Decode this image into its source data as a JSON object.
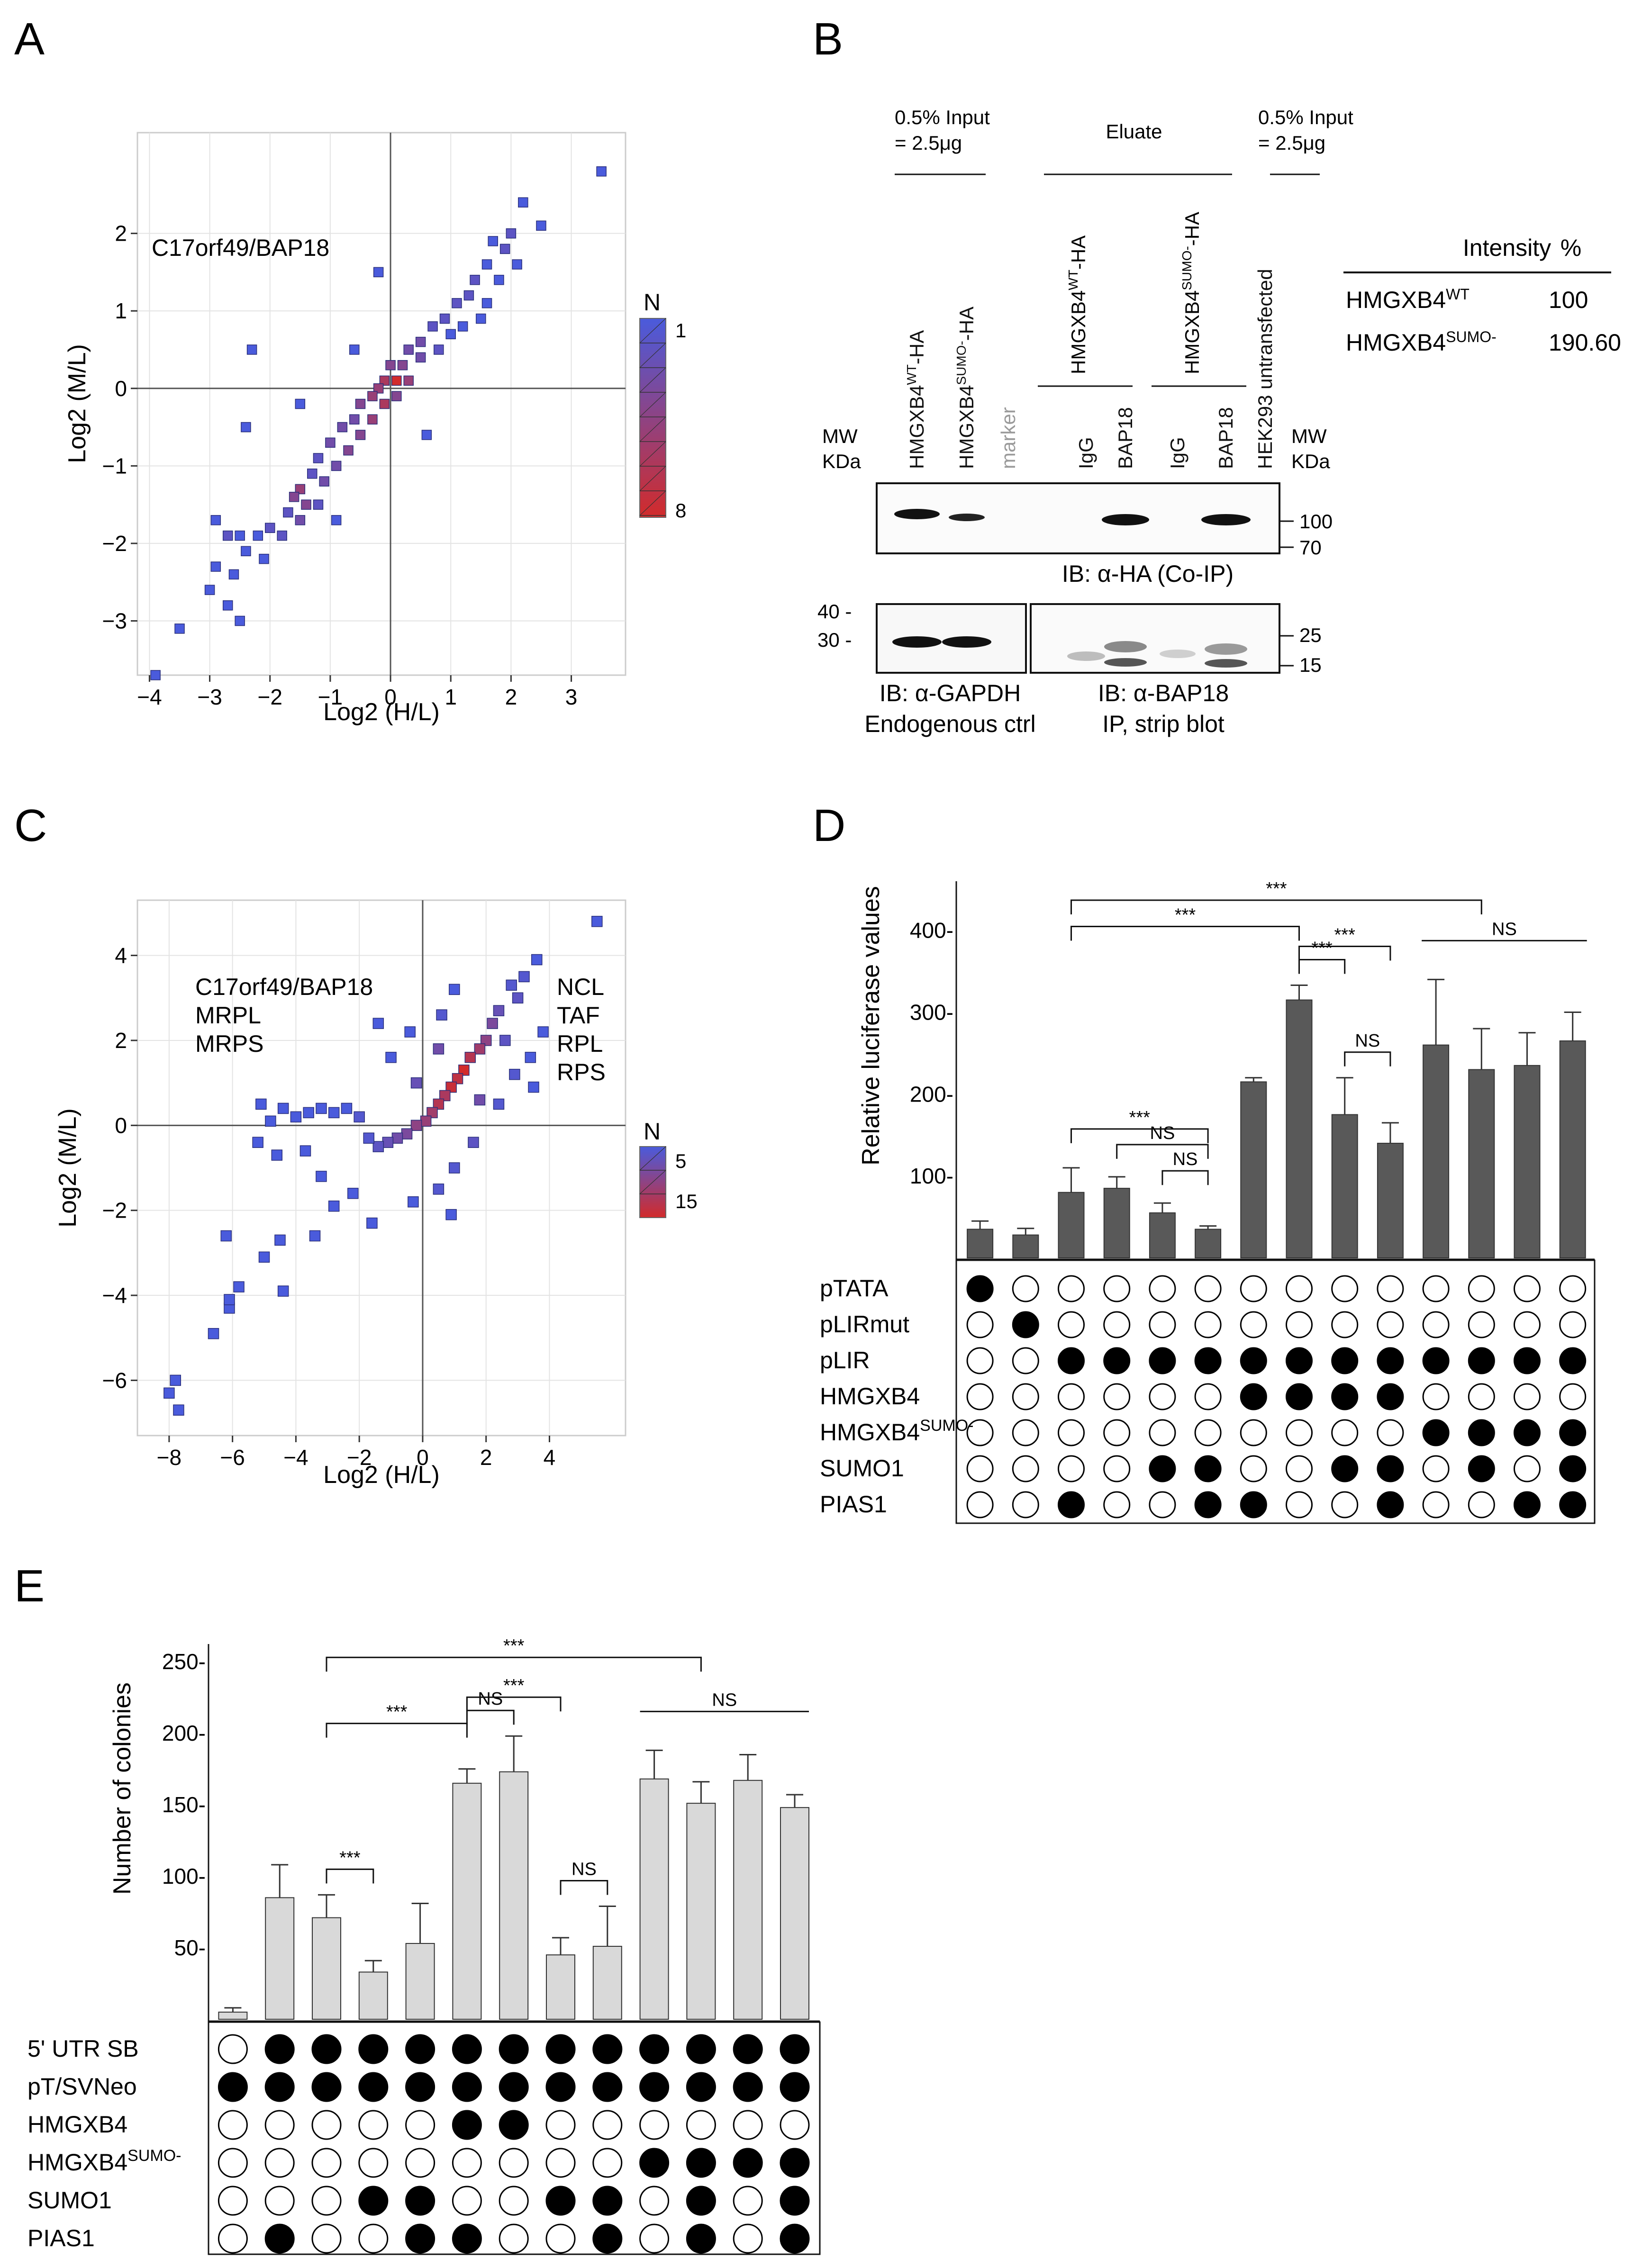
{
  "panels": {
    "A": "A",
    "B": "B",
    "C": "C",
    "D": "D",
    "E": "E"
  },
  "chart_data": [
    {
      "panel": "A",
      "type": "heatmap",
      "title": "",
      "xlabel": "Log2 (H/L)",
      "ylabel": "Log2 (M/L)",
      "xlim": [
        -4.2,
        3.9
      ],
      "ylim": [
        -3.7,
        3.3
      ],
      "xticks": [
        -4,
        -3,
        -2,
        -1,
        0,
        1,
        2,
        3
      ],
      "xtick_labels": [
        "−4",
        "−3",
        "−2",
        "−1",
        "0",
        "1",
        "2",
        "3"
      ],
      "yticks": [
        -3,
        -2,
        -1,
        0,
        1,
        2
      ],
      "ytick_labels": [
        "−3",
        "−2",
        "−1",
        "0",
        "1",
        "2"
      ],
      "annotation": "C17orf49/BAP18",
      "legend": {
        "title": "N",
        "min_label": "1",
        "max_label": "8",
        "min": 1,
        "max": 8
      },
      "bins": [
        [
          3.5,
          2.8,
          1
        ],
        [
          2.5,
          2.1,
          1
        ],
        [
          2.2,
          2.4,
          1
        ],
        [
          2.0,
          2.0,
          2
        ],
        [
          1.9,
          1.8,
          2
        ],
        [
          1.7,
          1.9,
          1
        ],
        [
          2.1,
          1.6,
          1
        ],
        [
          1.6,
          1.6,
          1
        ],
        [
          1.4,
          1.4,
          2
        ],
        [
          1.8,
          1.4,
          1
        ],
        [
          1.3,
          1.2,
          2
        ],
        [
          1.6,
          1.1,
          1
        ],
        [
          1.1,
          1.1,
          2
        ],
        [
          1.5,
          0.9,
          1
        ],
        [
          0.9,
          0.9,
          2
        ],
        [
          1.2,
          0.8,
          1
        ],
        [
          0.7,
          0.8,
          2
        ],
        [
          1.0,
          0.7,
          1
        ],
        [
          0.5,
          0.6,
          3
        ],
        [
          0.8,
          0.5,
          2
        ],
        [
          0.3,
          0.5,
          3
        ],
        [
          0.5,
          0.4,
          3
        ],
        [
          0.2,
          0.3,
          4
        ],
        [
          0.0,
          0.3,
          4
        ],
        [
          0.3,
          0.1,
          5
        ],
        [
          0.1,
          0.1,
          8
        ],
        [
          -0.1,
          0.1,
          6
        ],
        [
          -0.2,
          0.0,
          5
        ],
        [
          0.1,
          -0.1,
          4
        ],
        [
          -0.3,
          -0.1,
          5
        ],
        [
          -0.1,
          -0.2,
          6
        ],
        [
          -0.5,
          -0.2,
          4
        ],
        [
          -0.3,
          -0.4,
          5
        ],
        [
          -0.6,
          -0.4,
          3
        ],
        [
          -0.8,
          -0.5,
          3
        ],
        [
          -0.5,
          -0.6,
          4
        ],
        [
          -1.0,
          -0.7,
          3
        ],
        [
          -0.7,
          -0.8,
          4
        ],
        [
          -1.2,
          -0.9,
          2
        ],
        [
          -0.9,
          -1.0,
          3
        ],
        [
          -1.3,
          -1.1,
          2
        ],
        [
          -1.1,
          -1.2,
          3
        ],
        [
          -1.5,
          -1.3,
          5
        ],
        [
          -1.4,
          -1.5,
          4
        ],
        [
          -1.6,
          -1.4,
          4
        ],
        [
          -1.2,
          -1.5,
          2
        ],
        [
          -1.7,
          -1.6,
          2
        ],
        [
          -1.5,
          -1.7,
          3
        ],
        [
          -2.0,
          -1.8,
          2
        ],
        [
          -1.8,
          -1.9,
          2
        ],
        [
          -2.2,
          -1.9,
          1
        ],
        [
          -2.5,
          -1.9,
          1
        ],
        [
          -2.7,
          -1.9,
          2
        ],
        [
          -2.4,
          -2.1,
          1
        ],
        [
          -2.1,
          -2.2,
          1
        ],
        [
          -2.9,
          -1.7,
          1
        ],
        [
          -2.9,
          -2.3,
          1
        ],
        [
          -2.6,
          -2.4,
          1
        ],
        [
          -3.0,
          -2.6,
          1
        ],
        [
          -2.7,
          -2.8,
          1
        ],
        [
          -2.5,
          -3.0,
          1
        ],
        [
          -3.5,
          -3.1,
          1
        ],
        [
          -2.4,
          -0.5,
          1
        ],
        [
          -1.5,
          -0.2,
          1
        ],
        [
          -0.2,
          1.5,
          1
        ],
        [
          -2.3,
          0.5,
          1
        ],
        [
          -0.9,
          -1.7,
          1
        ],
        [
          -3.9,
          -3.7,
          1
        ],
        [
          0.6,
          -0.6,
          1
        ],
        [
          -0.6,
          0.5,
          1
        ]
      ]
    },
    {
      "panel": "C",
      "type": "heatmap",
      "title": "",
      "xlabel": "Log2 (H/L)",
      "ylabel": "Log2 (M/L)",
      "xlim": [
        -9.0,
        6.4
      ],
      "ylim": [
        -7.3,
        5.3
      ],
      "xticks": [
        -8,
        -6,
        -4,
        -2,
        0,
        2,
        4
      ],
      "xtick_labels": [
        "−8",
        "−6",
        "−4",
        "−2",
        "0",
        "2",
        "4"
      ],
      "yticks": [
        -6,
        -4,
        -2,
        0,
        2,
        4
      ],
      "ytick_labels": [
        "−6",
        "−4",
        "−2",
        "0",
        "2",
        "4"
      ],
      "annotation_left": [
        "C17orf49/BAP18",
        "MRPL",
        "MRPS"
      ],
      "annotation_right": [
        "NCL",
        "TAF",
        "RPL",
        "RPS"
      ],
      "legend": {
        "title": "N",
        "min_label": "5",
        "max_label": "15",
        "min": 1,
        "max": 15
      },
      "bins": [
        [
          5.5,
          4.8,
          1
        ],
        [
          3.6,
          3.9,
          1
        ],
        [
          3.2,
          3.5,
          2
        ],
        [
          3.0,
          3.0,
          3
        ],
        [
          2.8,
          3.3,
          2
        ],
        [
          2.4,
          2.7,
          4
        ],
        [
          2.2,
          2.4,
          6
        ],
        [
          2.0,
          2.0,
          8
        ],
        [
          1.8,
          1.8,
          10
        ],
        [
          1.5,
          1.6,
          12
        ],
        [
          1.3,
          1.3,
          15
        ],
        [
          1.1,
          1.1,
          13
        ],
        [
          0.9,
          0.9,
          14
        ],
        [
          0.7,
          0.7,
          11
        ],
        [
          0.5,
          0.5,
          12
        ],
        [
          0.3,
          0.3,
          10
        ],
        [
          0.1,
          0.1,
          9
        ],
        [
          -0.2,
          0.0,
          8
        ],
        [
          -0.5,
          -0.2,
          6
        ],
        [
          -0.8,
          -0.3,
          5
        ],
        [
          -1.1,
          -0.4,
          4
        ],
        [
          -1.4,
          -0.5,
          3
        ],
        [
          -1.7,
          -0.3,
          2
        ],
        [
          -2.0,
          0.2,
          2
        ],
        [
          -2.4,
          0.4,
          1
        ],
        [
          -2.8,
          0.3,
          1
        ],
        [
          -3.2,
          0.4,
          1
        ],
        [
          -3.6,
          0.3,
          1
        ],
        [
          -4.0,
          0.2,
          1
        ],
        [
          -4.4,
          0.4,
          1
        ],
        [
          -4.8,
          0.1,
          1
        ],
        [
          -5.2,
          -0.4,
          1
        ],
        [
          -5.1,
          0.5,
          1
        ],
        [
          -4.6,
          -0.7,
          1
        ],
        [
          -3.7,
          -0.6,
          1
        ],
        [
          -3.2,
          -1.2,
          1
        ],
        [
          -2.2,
          -1.6,
          1
        ],
        [
          -1.6,
          -2.3,
          1
        ],
        [
          -2.8,
          -1.9,
          1
        ],
        [
          -0.3,
          -1.8,
          1
        ],
        [
          0.5,
          -1.5,
          2
        ],
        [
          1.0,
          -1.0,
          2
        ],
        [
          1.6,
          -0.4,
          3
        ],
        [
          2.4,
          0.5,
          2
        ],
        [
          2.9,
          1.2,
          2
        ],
        [
          3.4,
          1.6,
          1
        ],
        [
          3.8,
          2.2,
          1
        ],
        [
          1.0,
          3.2,
          1
        ],
        [
          0.6,
          2.6,
          2
        ],
        [
          -0.4,
          2.2,
          1
        ],
        [
          -1.0,
          1.6,
          1
        ],
        [
          -0.2,
          1.0,
          4
        ],
        [
          0.5,
          1.8,
          5
        ],
        [
          1.8,
          0.6,
          5
        ],
        [
          2.6,
          2.0,
          3
        ],
        [
          -6.2,
          -2.6,
          1
        ],
        [
          -6.1,
          -4.3,
          1
        ],
        [
          -5.8,
          -3.8,
          1
        ],
        [
          -5.0,
          -3.1,
          1
        ],
        [
          -4.4,
          -3.9,
          1
        ],
        [
          -6.6,
          -4.9,
          1
        ],
        [
          -7.8,
          -6.0,
          1
        ],
        [
          -7.7,
          -6.7,
          1
        ],
        [
          -8.0,
          -6.3,
          1
        ],
        [
          -6.1,
          -4.1,
          1
        ],
        [
          -4.5,
          -2.7,
          1
        ],
        [
          -3.4,
          -2.6,
          1
        ],
        [
          -1.4,
          2.4,
          1
        ],
        [
          0.9,
          -2.1,
          1
        ],
        [
          3.5,
          0.9,
          1
        ]
      ]
    },
    {
      "panel": "D",
      "type": "bar",
      "title": "",
      "xlabel": "",
      "ylabel": "Relative luciferase values",
      "ylim": [
        0,
        460
      ],
      "yticks": [
        100,
        200,
        300,
        400
      ],
      "ytick_labels": [
        "100-",
        "200-",
        "300-",
        "400-"
      ],
      "values": [
        35,
        28,
        80,
        85,
        55,
        35,
        215,
        315,
        175,
        140,
        260,
        230,
        235,
        265
      ],
      "errors": [
        10,
        8,
        30,
        14,
        12,
        4,
        5,
        18,
        45,
        25,
        80,
        50,
        40,
        35
      ],
      "bar_color": "#595959",
      "significance": [
        {
          "from": 4,
          "to": 6,
          "label": "NS"
        },
        {
          "from": 5,
          "to": 6,
          "label": "NS"
        },
        {
          "from": 3,
          "to": 6,
          "label": "***"
        },
        {
          "from": 3,
          "to": 8,
          "label": "***"
        },
        {
          "from": 8,
          "to": 9,
          "label": "***"
        },
        {
          "from": 8,
          "to": 10,
          "label": "***"
        },
        {
          "from": 9,
          "to": 10,
          "label": "NS"
        },
        {
          "from": 3,
          "to": 12,
          "label": "***"
        },
        {
          "from": 11,
          "to": 14,
          "label": "NS"
        }
      ],
      "matrix_rows": [
        "pTATA",
        "pLIRmut",
        "pLIR",
        "HMGXB4",
        "HMGXB4",
        "SUMO1",
        "PIAS1"
      ],
      "matrix_row_sup": [
        "",
        "",
        "",
        "",
        "SUMO-",
        "",
        ""
      ],
      "matrix": [
        [
          1,
          0,
          0,
          0,
          0,
          0,
          0,
          0,
          0,
          0,
          0,
          0,
          0,
          0
        ],
        [
          0,
          1,
          0,
          0,
          0,
          0,
          0,
          0,
          0,
          0,
          0,
          0,
          0,
          0
        ],
        [
          0,
          0,
          1,
          1,
          1,
          1,
          1,
          1,
          1,
          1,
          1,
          1,
          1,
          1
        ],
        [
          0,
          0,
          0,
          0,
          0,
          0,
          1,
          1,
          1,
          1,
          0,
          0,
          0,
          0
        ],
        [
          0,
          0,
          0,
          0,
          0,
          0,
          0,
          0,
          0,
          0,
          1,
          1,
          1,
          1
        ],
        [
          0,
          0,
          0,
          0,
          1,
          1,
          0,
          0,
          1,
          1,
          0,
          1,
          0,
          1
        ],
        [
          0,
          0,
          1,
          0,
          0,
          1,
          1,
          0,
          0,
          1,
          0,
          0,
          1,
          1
        ]
      ]
    },
    {
      "panel": "E",
      "type": "bar",
      "title": "",
      "xlabel": "",
      "ylabel": "Number of colonies",
      "ylim": [
        0,
        260
      ],
      "yticks": [
        50,
        100,
        150,
        200,
        250
      ],
      "ytick_labels": [
        "50-",
        "100-",
        "150-",
        "200-",
        "250-"
      ],
      "values": [
        5,
        85,
        71,
        33,
        53,
        165,
        173,
        45,
        51,
        168,
        151,
        167,
        148
      ],
      "errors": [
        3,
        23,
        16,
        8,
        28,
        10,
        25,
        12,
        28,
        20,
        15,
        18,
        9
      ],
      "bar_color": "#d9d9d9",
      "significance": [
        {
          "from": 3,
          "to": 4,
          "label": "***"
        },
        {
          "from": 3,
          "to": 6,
          "label": "***"
        },
        {
          "from": 6,
          "to": 7,
          "label": "NS"
        },
        {
          "from": 6,
          "to": 8,
          "label": "***"
        },
        {
          "from": 8,
          "to": 9,
          "label": "NS"
        },
        {
          "from": 3,
          "to": 11,
          "label": "***"
        },
        {
          "from": 10,
          "to": 13,
          "label": "NS"
        }
      ],
      "matrix_rows": [
        "5' UTR SB",
        "pT/SVNeo",
        "HMGXB4",
        "HMGXB4",
        "SUMO1",
        "PIAS1"
      ],
      "matrix_row_sup": [
        "",
        "",
        "",
        "SUMO-",
        "",
        ""
      ],
      "matrix": [
        [
          0,
          1,
          1,
          1,
          1,
          1,
          1,
          1,
          1,
          1,
          1,
          1,
          1
        ],
        [
          1,
          1,
          1,
          1,
          1,
          1,
          1,
          1,
          1,
          1,
          1,
          1,
          1
        ],
        [
          0,
          0,
          0,
          0,
          0,
          1,
          1,
          0,
          0,
          0,
          0,
          0,
          0
        ],
        [
          0,
          0,
          0,
          0,
          0,
          0,
          0,
          0,
          0,
          1,
          1,
          1,
          1
        ],
        [
          0,
          0,
          0,
          1,
          1,
          0,
          0,
          1,
          1,
          0,
          1,
          0,
          1
        ],
        [
          0,
          1,
          0,
          0,
          1,
          1,
          0,
          0,
          1,
          0,
          1,
          0,
          1
        ]
      ]
    }
  ],
  "panelB": {
    "input_left": [
      "0.5% Input",
      "= 2.5μg"
    ],
    "eluate": "Eluate",
    "input_right": [
      "0.5% Input",
      "= 2.5μg"
    ],
    "lanes": [
      {
        "main": "HMGXB4",
        "sup": "WT",
        "suffix": "-HA"
      },
      {
        "main": "HMGXB4",
        "sup": "SUMO-",
        "suffix": "-HA"
      },
      {
        "main": "marker",
        "sup": "",
        "suffix": ""
      },
      {
        "main": "IgG",
        "sup": "",
        "suffix": ""
      },
      {
        "main": "BAP18",
        "sup": "",
        "suffix": ""
      },
      {
        "main": "IgG",
        "sup": "",
        "suffix": ""
      },
      {
        "main": "BAP18",
        "sup": "",
        "suffix": ""
      },
      {
        "main": "HEK293 untransfected",
        "sup": "",
        "suffix": ""
      }
    ],
    "eluate_groups": [
      {
        "main": "HMGXB4",
        "sup": "WT",
        "suffix": "-HA"
      },
      {
        "main": "HMGXB4",
        "sup": "SUMO-",
        "suffix": "-HA"
      }
    ],
    "mw_left": [
      "MW",
      "KDa"
    ],
    "mw_right": [
      "MW",
      "KDa"
    ],
    "mw_top": [
      "100",
      "70"
    ],
    "mw_bottom_left": [
      "40 -",
      "30 -"
    ],
    "mw_bottom_right": [
      "25",
      "15"
    ],
    "ib_top": "IB: α-HA (Co-IP)",
    "ib_gapdh": [
      "IB: α-GAPDH",
      "Endogenous ctrl"
    ],
    "ib_bap18": [
      "IB: α-BAP18",
      "IP, strip blot"
    ],
    "table": {
      "headers": [
        "Intensity",
        "%"
      ],
      "rows": [
        {
          "name": "HMGXB4",
          "sup": "WT",
          "value": "100"
        },
        {
          "name": "HMGXB4",
          "sup": "SUMO-",
          "value": "190.60"
        }
      ]
    }
  },
  "colors": {
    "low": "#4a5bdc",
    "high": "#d22b2b",
    "grid": "#e3e3e3",
    "axis": "#333333"
  }
}
